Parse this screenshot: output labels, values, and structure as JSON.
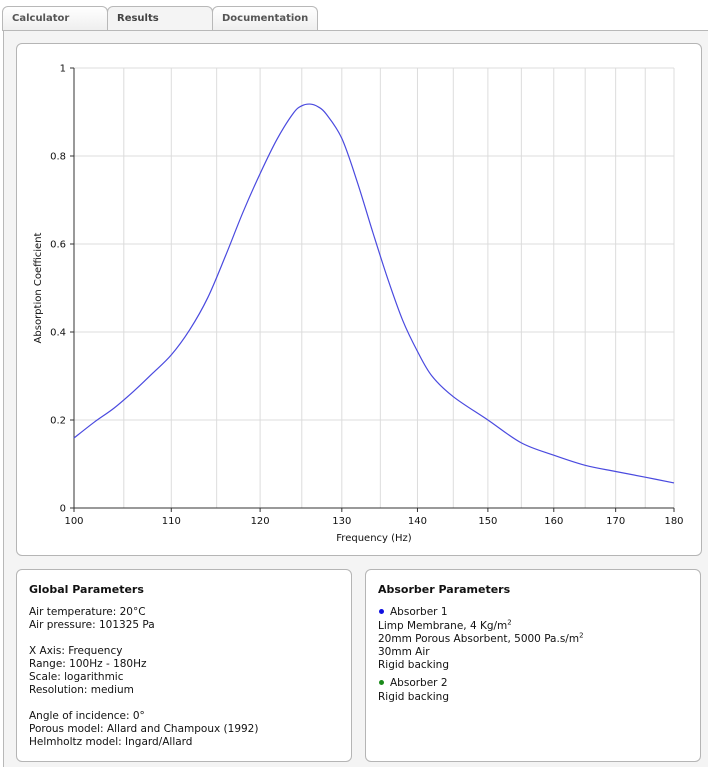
{
  "tabs": [
    {
      "label": "Calculator",
      "active": false
    },
    {
      "label": "Results",
      "active": true
    },
    {
      "label": "Documentation",
      "active": false
    }
  ],
  "chart_data": {
    "type": "line",
    "xlabel": "Frequency (Hz)",
    "ylabel": "Absorption Coefficient",
    "xlim": [
      100,
      180
    ],
    "ylim": [
      0,
      1
    ],
    "x_scale": "logarithmic",
    "x_ticks": [
      100,
      110,
      120,
      130,
      140,
      150,
      160,
      170,
      180
    ],
    "x_minor_ticks": [
      105,
      115,
      125,
      135,
      145,
      155,
      165,
      175
    ],
    "y_ticks": [
      0,
      0.2,
      0.4,
      0.6,
      0.8,
      1
    ],
    "y_tick_labels": [
      "0",
      "0.2",
      "0.4",
      "0.6",
      "0.8",
      "1"
    ],
    "grid": true,
    "series": [
      {
        "color": "#4a4adf",
        "x": [
          100,
          102,
          104,
          106,
          108,
          110,
          112,
          114,
          116,
          118,
          120,
          122,
          124,
          125,
          126,
          127,
          128,
          130,
          132,
          134,
          136,
          138,
          140,
          142,
          145,
          150,
          155,
          160,
          165,
          170,
          175,
          180
        ],
        "y": [
          0.159,
          0.195,
          0.227,
          0.265,
          0.306,
          0.348,
          0.405,
          0.478,
          0.573,
          0.672,
          0.76,
          0.838,
          0.898,
          0.914,
          0.918,
          0.912,
          0.896,
          0.84,
          0.74,
          0.627,
          0.52,
          0.426,
          0.356,
          0.3,
          0.253,
          0.2,
          0.148,
          0.12,
          0.097,
          0.083,
          0.07,
          0.057
        ]
      }
    ]
  },
  "global_parameters": {
    "title": "Global Parameters",
    "air_temperature": "Air temperature: 20°C",
    "air_pressure": "Air pressure: 101325 Pa",
    "x_axis": "X Axis: Frequency",
    "range": "Range: 100Hz - 180Hz",
    "scale": "Scale: logarithmic",
    "resolution": "Resolution: medium",
    "angle": "Angle of incidence: 0°",
    "porous_model": "Porous model: Allard and Champoux (1992)",
    "helmholtz_model": "Helmholtz model: Ingard/Allard"
  },
  "absorber_parameters": {
    "title": "Absorber Parameters",
    "absorber1": {
      "name": "Absorber 1",
      "color": "#1010e0",
      "layer1": "Limp Membrane, 4 Kg/m",
      "layer1_sup": "2",
      "layer2": "20mm Porous Absorbent, 5000 Pa.s/m",
      "layer2_sup": "2",
      "layer3": "30mm Air",
      "backing": "Rigid backing"
    },
    "absorber2": {
      "name": "Absorber 2",
      "color": "#1a8a1a",
      "backing": "Rigid backing"
    }
  }
}
